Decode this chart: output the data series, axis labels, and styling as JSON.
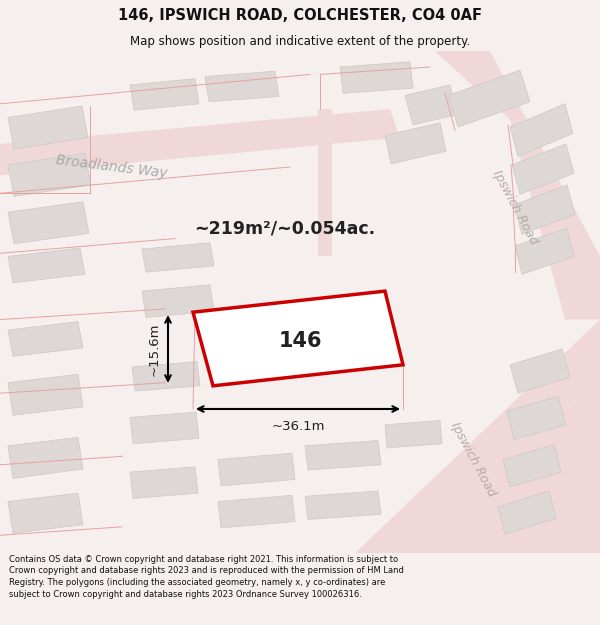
{
  "title_line1": "146, IPSWICH ROAD, COLCHESTER, CO4 0AF",
  "title_line2": "Map shows position and indicative extent of the property.",
  "footer_text": "Contains OS data © Crown copyright and database right 2021. This information is subject to Crown copyright and database rights 2023 and is reproduced with the permission of HM Land Registry. The polygons (including the associated geometry, namely x, y co-ordinates) are subject to Crown copyright and database rights 2023 Ordnance Survey 100026316.",
  "area_label": "~219m²/~0.054ac.",
  "width_label": "~36.1m",
  "height_label": "~15.6m",
  "property_number": "146",
  "bg_color": "#f5f0ee",
  "map_bg_color": "#f2eeeb",
  "building_color": "#ddd8d5",
  "building_outline": "#ccc8c5",
  "property_outline": "#cc0000",
  "property_fill": "#ffffff",
  "road_line_color": "#e8a0a0",
  "road_fill_color": "#f0d8d8",
  "text_color": "#222222",
  "title_color": "#111111",
  "footer_color": "#111111",
  "street_label_color": "#b8a8a8",
  "broadlands_label_color": "#aaaaaa"
}
